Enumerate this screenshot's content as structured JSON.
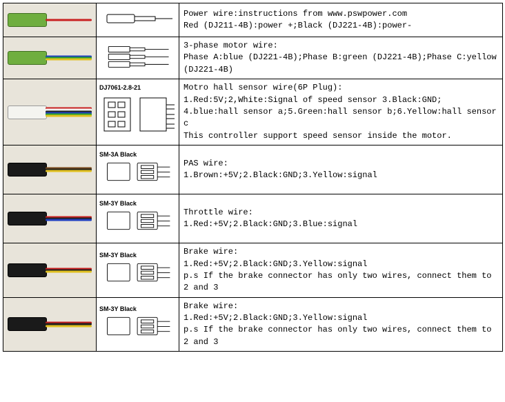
{
  "rows": [
    {
      "photo_style": "green",
      "photo_height": "normal",
      "wire_colors": [
        "#c92020"
      ],
      "diagram_label": "",
      "diagram_type": "bullet-single",
      "description": "Power wire:instructions from www.pswpower.com\nRed (DJ211-4B):power +;Black (DJ221-4B):power-"
    },
    {
      "photo_style": "green",
      "photo_height": "normal",
      "wire_colors": [
        "#2040c0",
        "#2aa02a",
        "#e0c020"
      ],
      "diagram_label": "",
      "diagram_type": "bullet-triple",
      "description": "3-phase motor wire:\nPhase A:blue (DJ221-4B);Phase B:green (DJ221-4B);Phase C:yellow (DJ221-4B)"
    },
    {
      "photo_style": "white",
      "photo_height": "tall",
      "wire_colors": [
        "#c92020",
        "#f0f0f0",
        "#202020",
        "#2040c0",
        "#2aa02a",
        "#e0c020"
      ],
      "diagram_label": "DJ7061-2.8-21",
      "diagram_type": "plug-6p",
      "description": "Motro hall sensor wire(6P Plug):\n1.Red:5V;2,White:Signal of speed sensor 3.Black:GND;\n4.blue:hall sensor a;5.Green:hall sensor b;6.Yellow:hall sensor c\nThis controller support speed sensor inside the motor."
    },
    {
      "photo_style": "black",
      "photo_height": "med",
      "wire_colors": [
        "#7a4a1a",
        "#202020",
        "#e0c020"
      ],
      "diagram_label": "SM-3A Black",
      "diagram_type": "sm3",
      "description": "PAS wire:\n1.Brown:+5V;2.Black:GND;3.Yellow:signal"
    },
    {
      "photo_style": "black",
      "photo_height": "med",
      "wire_colors": [
        "#c92020",
        "#202020",
        "#2040c0"
      ],
      "diagram_label": "SM-3Y Black",
      "diagram_type": "sm3",
      "description": "Throttle wire:\n1.Red:+5V;2.Black:GND;3.Blue:signal"
    },
    {
      "photo_style": "black",
      "photo_height": "med",
      "wire_colors": [
        "#c92020",
        "#202020",
        "#e0c020"
      ],
      "diagram_label": "SM-3Y Black",
      "diagram_type": "sm3",
      "description": "Brake wire:\n1.Red:+5V;2.Black:GND;3.Yellow:signal\np.s If the brake connector has only two wires, connect them to 2 and 3"
    },
    {
      "photo_style": "black",
      "photo_height": "med",
      "wire_colors": [
        "#c92020",
        "#202020",
        "#e0c020"
      ],
      "diagram_label": "SM-3Y Black",
      "diagram_type": "sm3",
      "description": "Brake wire:\n1.Red:+5V;2.Black:GND;3.Yellow:signal\np.s If the brake connector has only two wires, connect them to 2 and 3"
    }
  ],
  "diagram_styles": {
    "stroke": "#000000",
    "fill": "#ffffff",
    "stroke_width": 1
  }
}
